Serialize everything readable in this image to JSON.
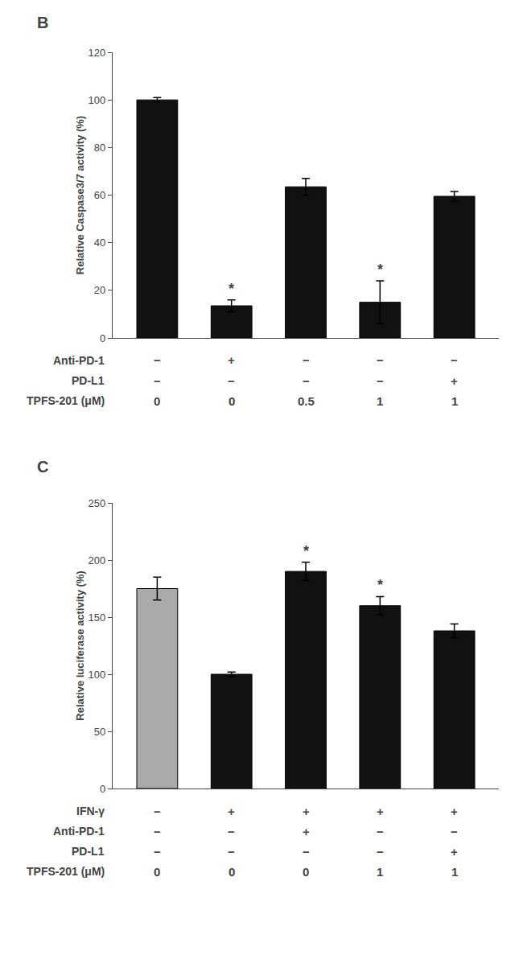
{
  "chart_data": [
    {
      "type": "bar",
      "title": "B",
      "ylabel": "Relative Caspase3/7 activity (%)",
      "categories": [
        null,
        null,
        null,
        null,
        null
      ],
      "values": [
        100,
        13.5,
        63.5,
        15,
        59.5
      ],
      "errors": [
        1.0,
        2.5,
        3.5,
        9.0,
        2.0
      ],
      "colors": [
        "#111111",
        "#111111",
        "#111111",
        "#111111",
        "#111111"
      ],
      "ylim": [
        0,
        120
      ],
      "yticks": [
        0,
        20,
        40,
        60,
        80,
        100,
        120
      ],
      "grid": false,
      "annotations": [
        {
          "category": 1,
          "text": "*"
        },
        {
          "category": 3,
          "text": "*"
        }
      ],
      "rows": [
        {
          "label": "Anti-PD-1",
          "values": [
            "−",
            "+",
            "−",
            "−",
            "−"
          ]
        },
        {
          "label": "PD-L1",
          "values": [
            "−",
            "−",
            "−",
            "−",
            "+"
          ]
        },
        {
          "label": "TPFS-201 (μM)",
          "values": [
            "0",
            "0",
            "0.5",
            "1",
            "1"
          ]
        }
      ]
    },
    {
      "type": "bar",
      "title": "C",
      "ylabel": "Relative luciferase activity (%)",
      "categories": [
        null,
        null,
        null,
        null,
        null
      ],
      "values": [
        175,
        100,
        190,
        160,
        138
      ],
      "errors": [
        10.0,
        2.0,
        8.0,
        8.0,
        6.0
      ],
      "colors": [
        "#aaaaaa",
        "#111111",
        "#111111",
        "#111111",
        "#111111"
      ],
      "ylim": [
        0,
        250
      ],
      "yticks": [
        0,
        50,
        100,
        150,
        200,
        250
      ],
      "grid": false,
      "annotations": [
        {
          "category": 2,
          "text": "*"
        },
        {
          "category": 3,
          "text": "*"
        }
      ],
      "rows": [
        {
          "label": "IFN-γ",
          "values": [
            "−",
            "+",
            "+",
            "+",
            "+"
          ]
        },
        {
          "label": "Anti-PD-1",
          "values": [
            "−",
            "−",
            "+",
            "−",
            "−"
          ]
        },
        {
          "label": "PD-L1",
          "values": [
            "−",
            "−",
            "−",
            "−",
            "+"
          ]
        },
        {
          "label": "TPFS-201 (μM)",
          "values": [
            "0",
            "0",
            "0",
            "1",
            "1"
          ]
        }
      ]
    }
  ]
}
